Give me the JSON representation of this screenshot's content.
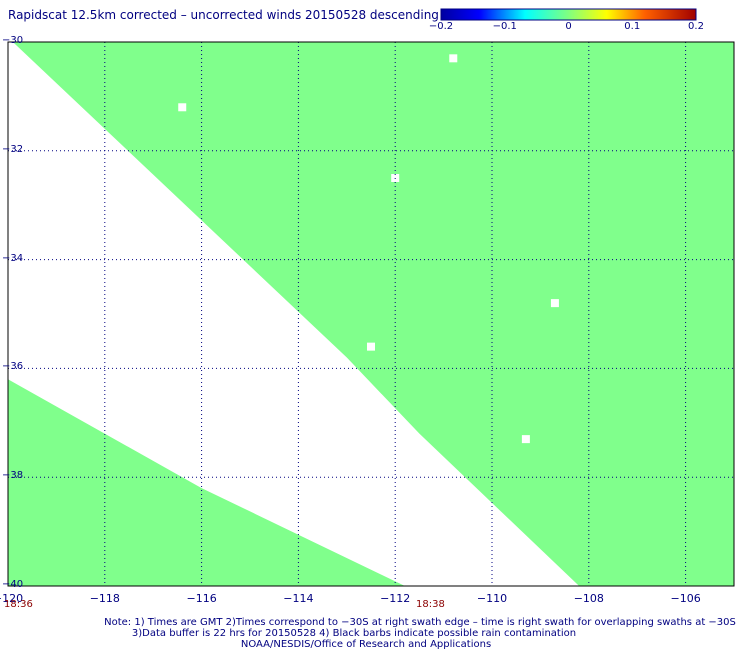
{
  "title": "Rapidscat 12.5km corrected – uncorrected winds 20150528 descending",
  "colorbar": {
    "ticks": [
      "−0.2",
      "−0.1",
      "0",
      "0.1",
      "0.2"
    ],
    "range": [
      -0.2,
      0.2
    ]
  },
  "chart_data": {
    "type": "heatmap",
    "title": "Rapidscat 12.5km corrected – uncorrected winds 20150528 descending",
    "x_range": [
      -120,
      -105
    ],
    "y_range": [
      -40,
      -30
    ],
    "x_ticks": [
      "−120",
      "−118",
      "−116",
      "−114",
      "−112",
      "−110",
      "−108",
      "−106"
    ],
    "x_tick_values": [
      -120,
      -118,
      -116,
      -114,
      -112,
      -110,
      -108,
      -106
    ],
    "y_ticks": [
      "−30",
      "−32",
      "−34",
      "−36",
      "−38",
      "−40"
    ],
    "y_tick_values": [
      -30,
      -32,
      -34,
      -36,
      -38,
      -40
    ],
    "grid": true,
    "cell_value": 0,
    "swath_fill_color": "#80ff8c",
    "right_swath_inner_edge": [
      {
        "lon": -119.9,
        "lat": -30.0
      },
      {
        "lon": -113.0,
        "lat": -35.8
      },
      {
        "lon": -111.5,
        "lat": -37.2
      },
      {
        "lon": -108.2,
        "lat": -40.0
      }
    ],
    "left_swath_inner_edge": [
      {
        "lon": -120.0,
        "lat": -36.2
      },
      {
        "lon": -116.0,
        "lat": -38.2
      },
      {
        "lon": -111.8,
        "lat": -40.0
      }
    ],
    "gaps": [
      {
        "lon": -110.8,
        "lat": -30.3
      },
      {
        "lon": -116.4,
        "lat": -31.2
      },
      {
        "lon": -112.0,
        "lat": -32.5
      },
      {
        "lon": -108.7,
        "lat": -34.8
      },
      {
        "lon": -112.5,
        "lat": -35.6
      },
      {
        "lon": -109.3,
        "lat": -37.3
      }
    ],
    "time_labels": [
      "18:36",
      "18:38"
    ]
  },
  "notes": {
    "line1": "Note: 1) Times are GMT 2)Times correspond to −30S at right swath edge – time is right swath for overlapping swaths at −30S",
    "line2": "3)Data buffer is 22 hrs for 20150528 4) Black barbs indicate possible rain contamination",
    "line3": "NOAA/NESDIS/Office of Research and Applications"
  }
}
